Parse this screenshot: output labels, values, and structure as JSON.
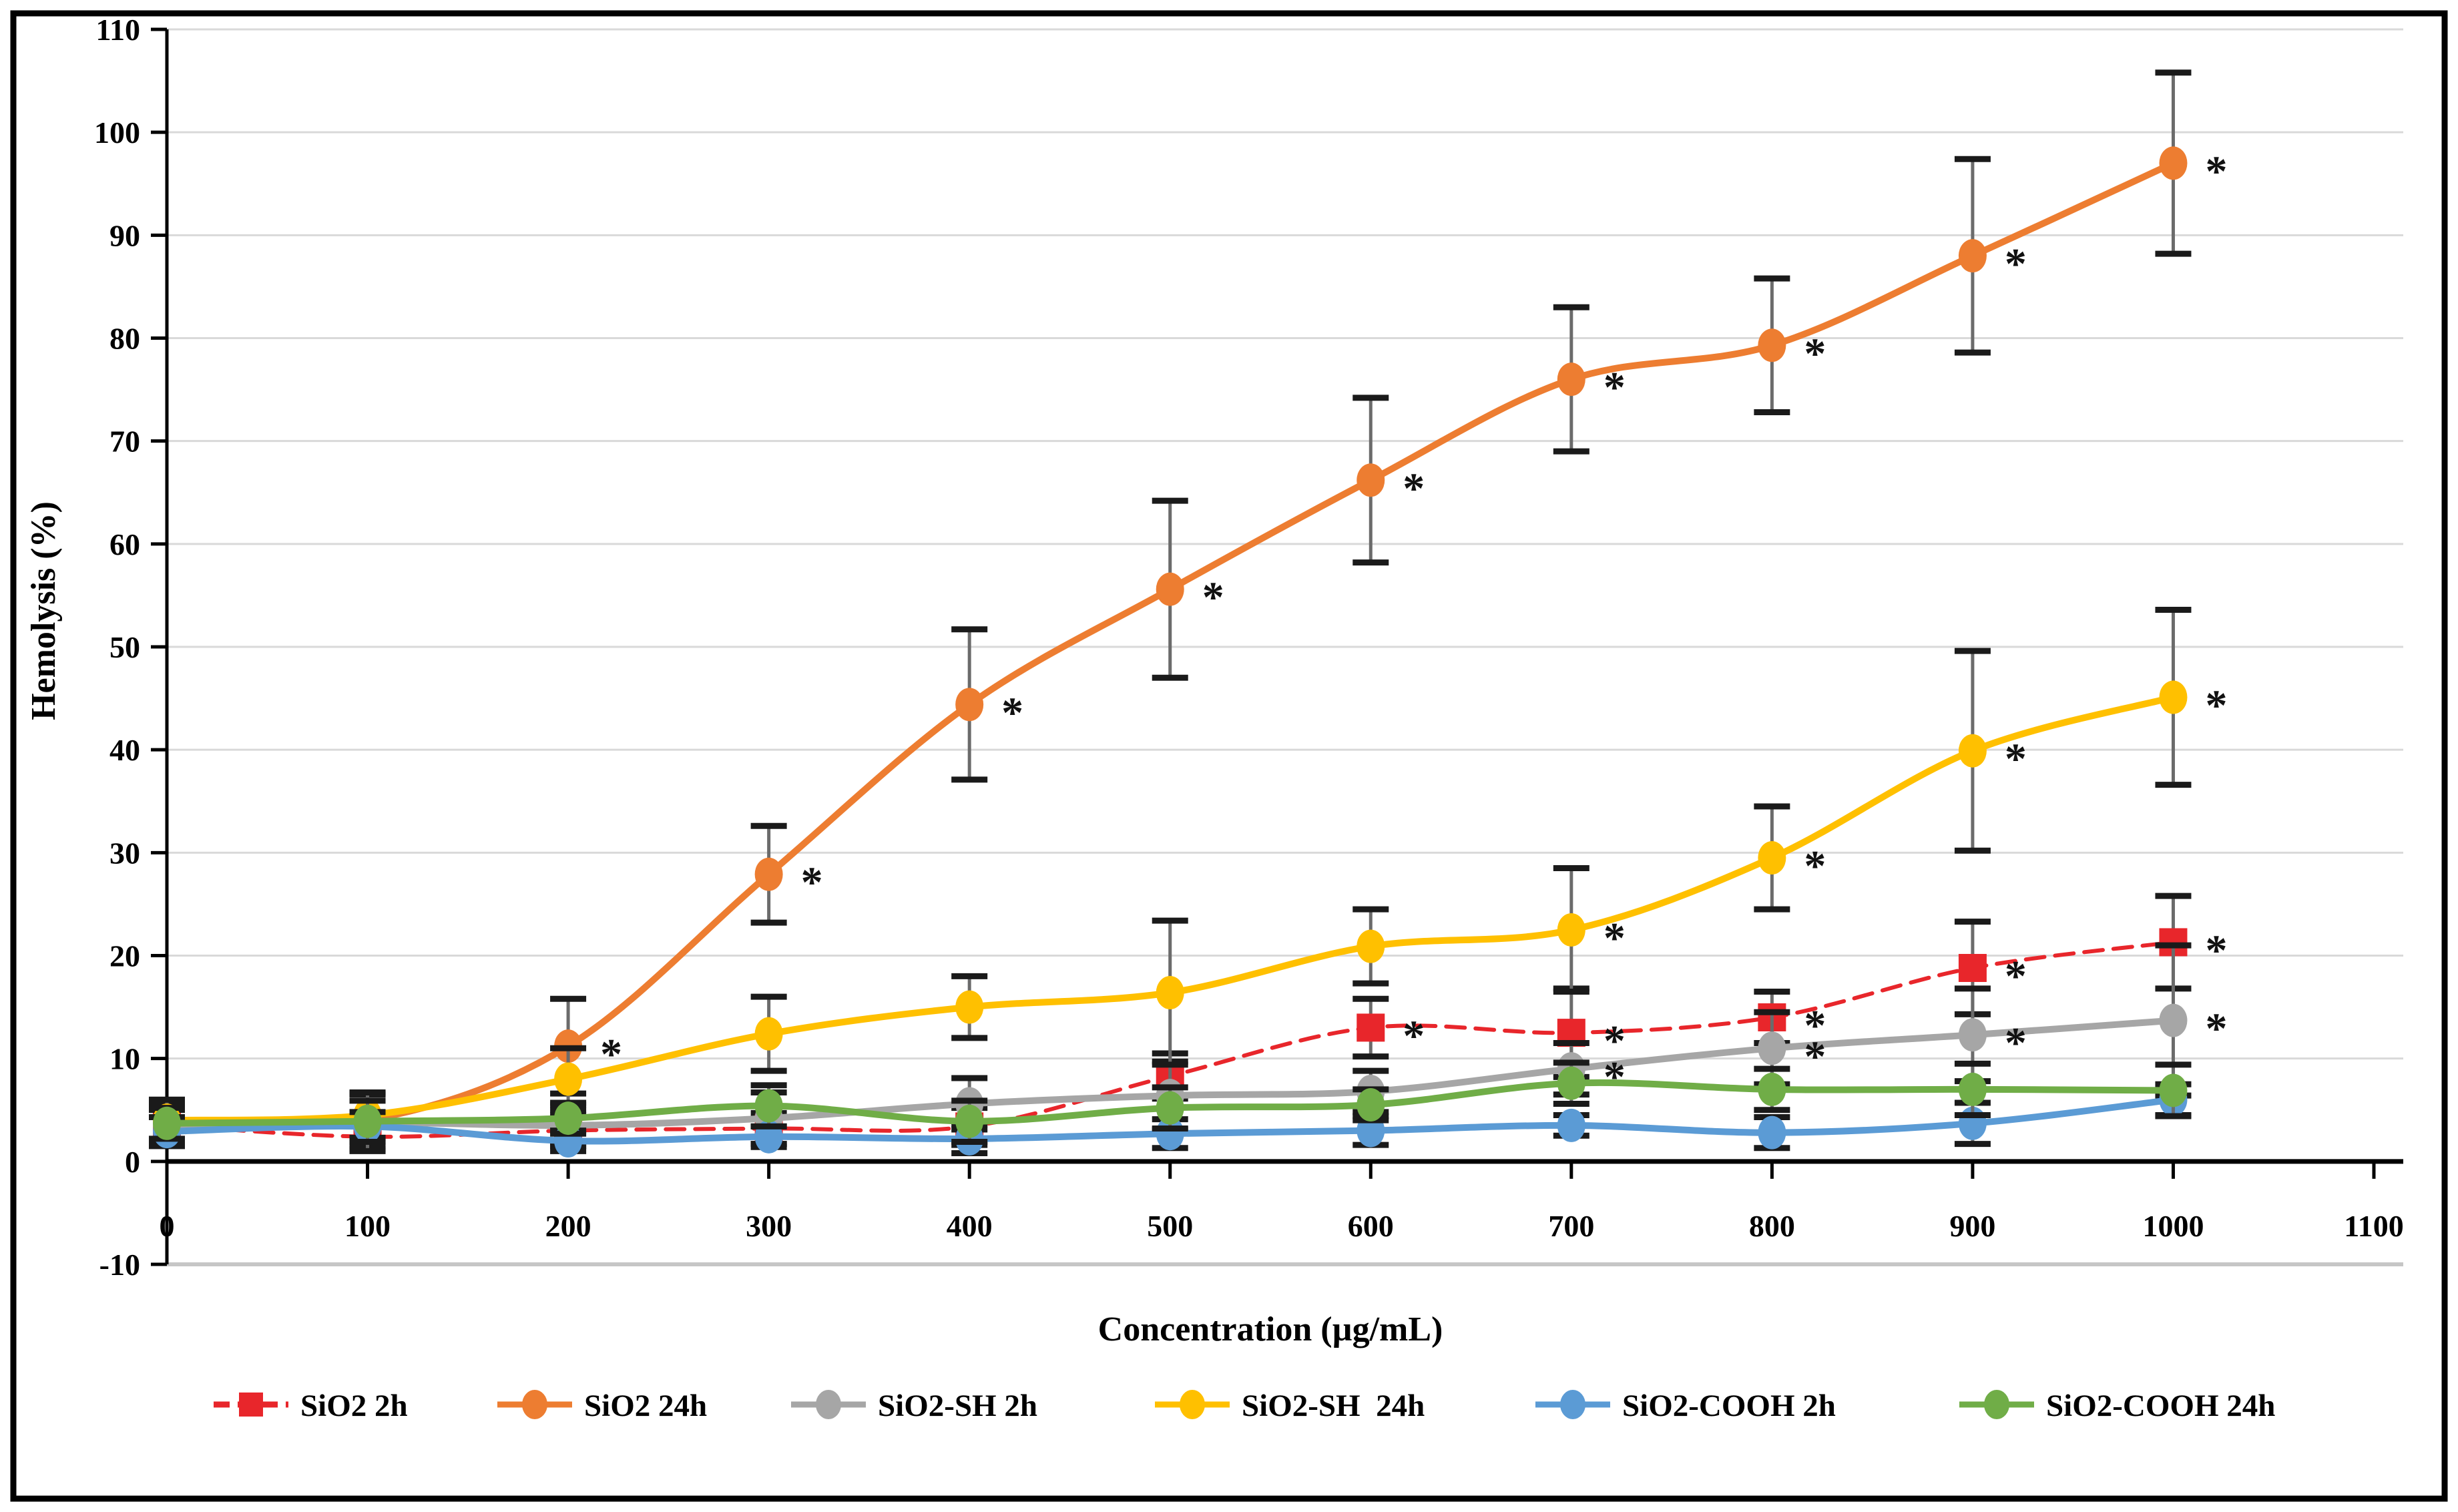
{
  "figure": {
    "background": "#ffffff",
    "border_color": "#000000",
    "text_color": "#000000"
  },
  "chart_data": {
    "type": "line",
    "title": "",
    "xlabel": "Concentration (µg/mL)",
    "ylabel": "Hemolysis (%)",
    "xlim": [
      0,
      1100
    ],
    "ylim": [
      -10,
      110
    ],
    "x_tick_step": 100,
    "y_tick_step": 10,
    "grid": "horizontal-only",
    "grid_color": "#d9d9d9",
    "bottom_grid_color": "#c6c6c6",
    "axis_color": "#000000",
    "error_bar_line_color": "#6b6b6b",
    "error_bar_cap_color": "#1a1a1a",
    "significance_symbol": "*",
    "legend_position": "bottom",
    "x": [
      0,
      100,
      200,
      300,
      400,
      500,
      600,
      700,
      800,
      900,
      1000
    ],
    "series": [
      {
        "label": "SiO2 2h",
        "color": "#e8262b",
        "marker": "square",
        "line": "dashed",
        "values": [
          3.5,
          2.4,
          3.0,
          3.2,
          3.4,
          8.3,
          13.0,
          12.5,
          14.0,
          18.8,
          21.3
        ],
        "errors": [
          2.0,
          1.2,
          1.5,
          1.5,
          1.8,
          2.2,
          2.8,
          4.3,
          2.5,
          4.5,
          4.5
        ],
        "significant_x": [
          600,
          700,
          800,
          900,
          1000
        ]
      },
      {
        "label": "SiO2 24h",
        "color": "#ed7d31",
        "marker": "circle",
        "line": "solid",
        "values": [
          4.0,
          4.0,
          11.2,
          27.9,
          44.4,
          55.6,
          66.2,
          76.0,
          79.3,
          88.0,
          97.0
        ],
        "errors": [
          2.0,
          2.5,
          4.6,
          4.7,
          7.3,
          8.6,
          8.0,
          7.0,
          6.5,
          9.4,
          8.8
        ],
        "significant_x": [
          200,
          300,
          400,
          500,
          600,
          700,
          800,
          900,
          1000
        ]
      },
      {
        "label": "SiO2-SH 2h",
        "color": "#a6a6a6",
        "marker": "circle",
        "line": "solid",
        "values": [
          3.5,
          3.8,
          3.5,
          4.2,
          5.6,
          6.4,
          6.8,
          9.0,
          11.0,
          12.3,
          13.7
        ],
        "errors": [
          1.5,
          2.8,
          2.0,
          2.5,
          2.5,
          3.3,
          2.0,
          2.5,
          3.5,
          4.5,
          7.3
        ],
        "significant_x": [
          700,
          800,
          900,
          1000
        ]
      },
      {
        "label": "SiO2-SH  24h",
        "color": "#ffc000",
        "marker": "circle",
        "line": "solid",
        "values": [
          4.0,
          4.5,
          8.0,
          12.4,
          15.0,
          16.4,
          20.9,
          22.5,
          29.5,
          39.9,
          45.1
        ],
        "errors": [
          2.0,
          2.2,
          3.0,
          3.6,
          3.0,
          7.0,
          3.6,
          6.0,
          5.0,
          9.7,
          8.5
        ],
        "significant_x": [
          700,
          800,
          900,
          1000
        ]
      },
      {
        "label": "SiO2-COOH 2h",
        "color": "#5b9bd5",
        "marker": "circle",
        "line": "solid",
        "values": [
          2.9,
          3.4,
          2.0,
          2.4,
          2.2,
          2.7,
          3.0,
          3.5,
          2.8,
          3.7,
          6.0
        ],
        "errors": [
          1.4,
          1.4,
          1.0,
          1.0,
          1.4,
          1.4,
          1.4,
          1.0,
          1.5,
          2.0,
          1.5
        ],
        "significant_x": []
      },
      {
        "label": "SiO2-COOH 24h",
        "color": "#70ad47",
        "marker": "circle",
        "line": "solid",
        "values": [
          3.7,
          3.9,
          4.2,
          5.4,
          3.9,
          5.2,
          5.5,
          7.6,
          7.0,
          7.0,
          6.9
        ],
        "errors": [
          1.5,
          2.0,
          1.5,
          2.0,
          2.0,
          2.0,
          1.5,
          2.0,
          2.0,
          2.5,
          2.5
        ],
        "significant_x": []
      }
    ]
  }
}
